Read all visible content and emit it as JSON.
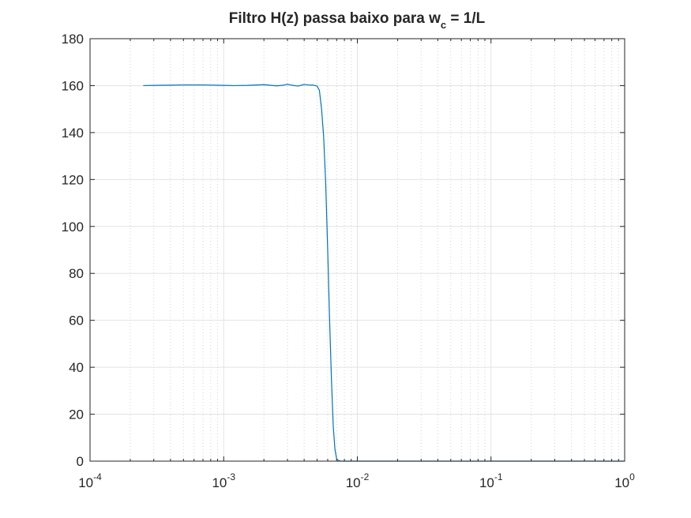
{
  "chart_data": {
    "type": "line",
    "title": {
      "prefix": "Filtro H(z) passa baixo para w",
      "subscript": "c",
      "suffix": " = 1/L"
    },
    "xlabel": "",
    "ylabel": "",
    "x_scale": "log",
    "xlim": [
      0.0001,
      1
    ],
    "ylim": [
      0,
      180
    ],
    "grid": true,
    "minor_grid_x": true,
    "line_color": "#0072BD",
    "y_ticks": [
      {
        "value": 0,
        "label": "0"
      },
      {
        "value": 20,
        "label": "20"
      },
      {
        "value": 40,
        "label": "40"
      },
      {
        "value": 60,
        "label": "60"
      },
      {
        "value": 80,
        "label": "80"
      },
      {
        "value": 100,
        "label": "100"
      },
      {
        "value": 120,
        "label": "120"
      },
      {
        "value": 140,
        "label": "140"
      },
      {
        "value": 160,
        "label": "160"
      },
      {
        "value": 180,
        "label": "180"
      }
    ],
    "x_ticks": [
      {
        "value": 0.0001,
        "base": "10",
        "exp": "-4"
      },
      {
        "value": 0.001,
        "base": "10",
        "exp": "-3"
      },
      {
        "value": 0.01,
        "base": "10",
        "exp": "-2"
      },
      {
        "value": 0.1,
        "base": "10",
        "exp": "-1"
      },
      {
        "value": 1,
        "base": "10",
        "exp": "0"
      }
    ],
    "series": [
      {
        "x": [
          0.00025,
          0.0003,
          0.0004,
          0.0005,
          0.0007,
          0.001,
          0.0012,
          0.0015,
          0.002,
          0.0025,
          0.0028,
          0.003,
          0.0033,
          0.0036,
          0.004,
          0.0043,
          0.0047,
          0.005,
          0.0052,
          0.0054,
          0.0056,
          0.0058,
          0.006,
          0.0062,
          0.0064,
          0.0066,
          0.0068,
          0.007,
          0.0072,
          0.0075,
          0.008,
          0.01,
          0.02,
          0.05,
          0.1,
          0.2,
          0.5,
          1
        ],
        "y": [
          160.0,
          160.1,
          160.2,
          160.3,
          160.3,
          160.1,
          160.0,
          160.1,
          160.4,
          159.9,
          160.2,
          160.6,
          160.1,
          159.8,
          160.5,
          160.3,
          160.2,
          159.8,
          158.0,
          150.0,
          138.0,
          118.0,
          90.0,
          60.0,
          35.0,
          15.0,
          5.0,
          1.0,
          0.3,
          0.0,
          0.0,
          0.0,
          0.0,
          0.0,
          0.0,
          0.0,
          0.0,
          0.0
        ]
      }
    ]
  }
}
